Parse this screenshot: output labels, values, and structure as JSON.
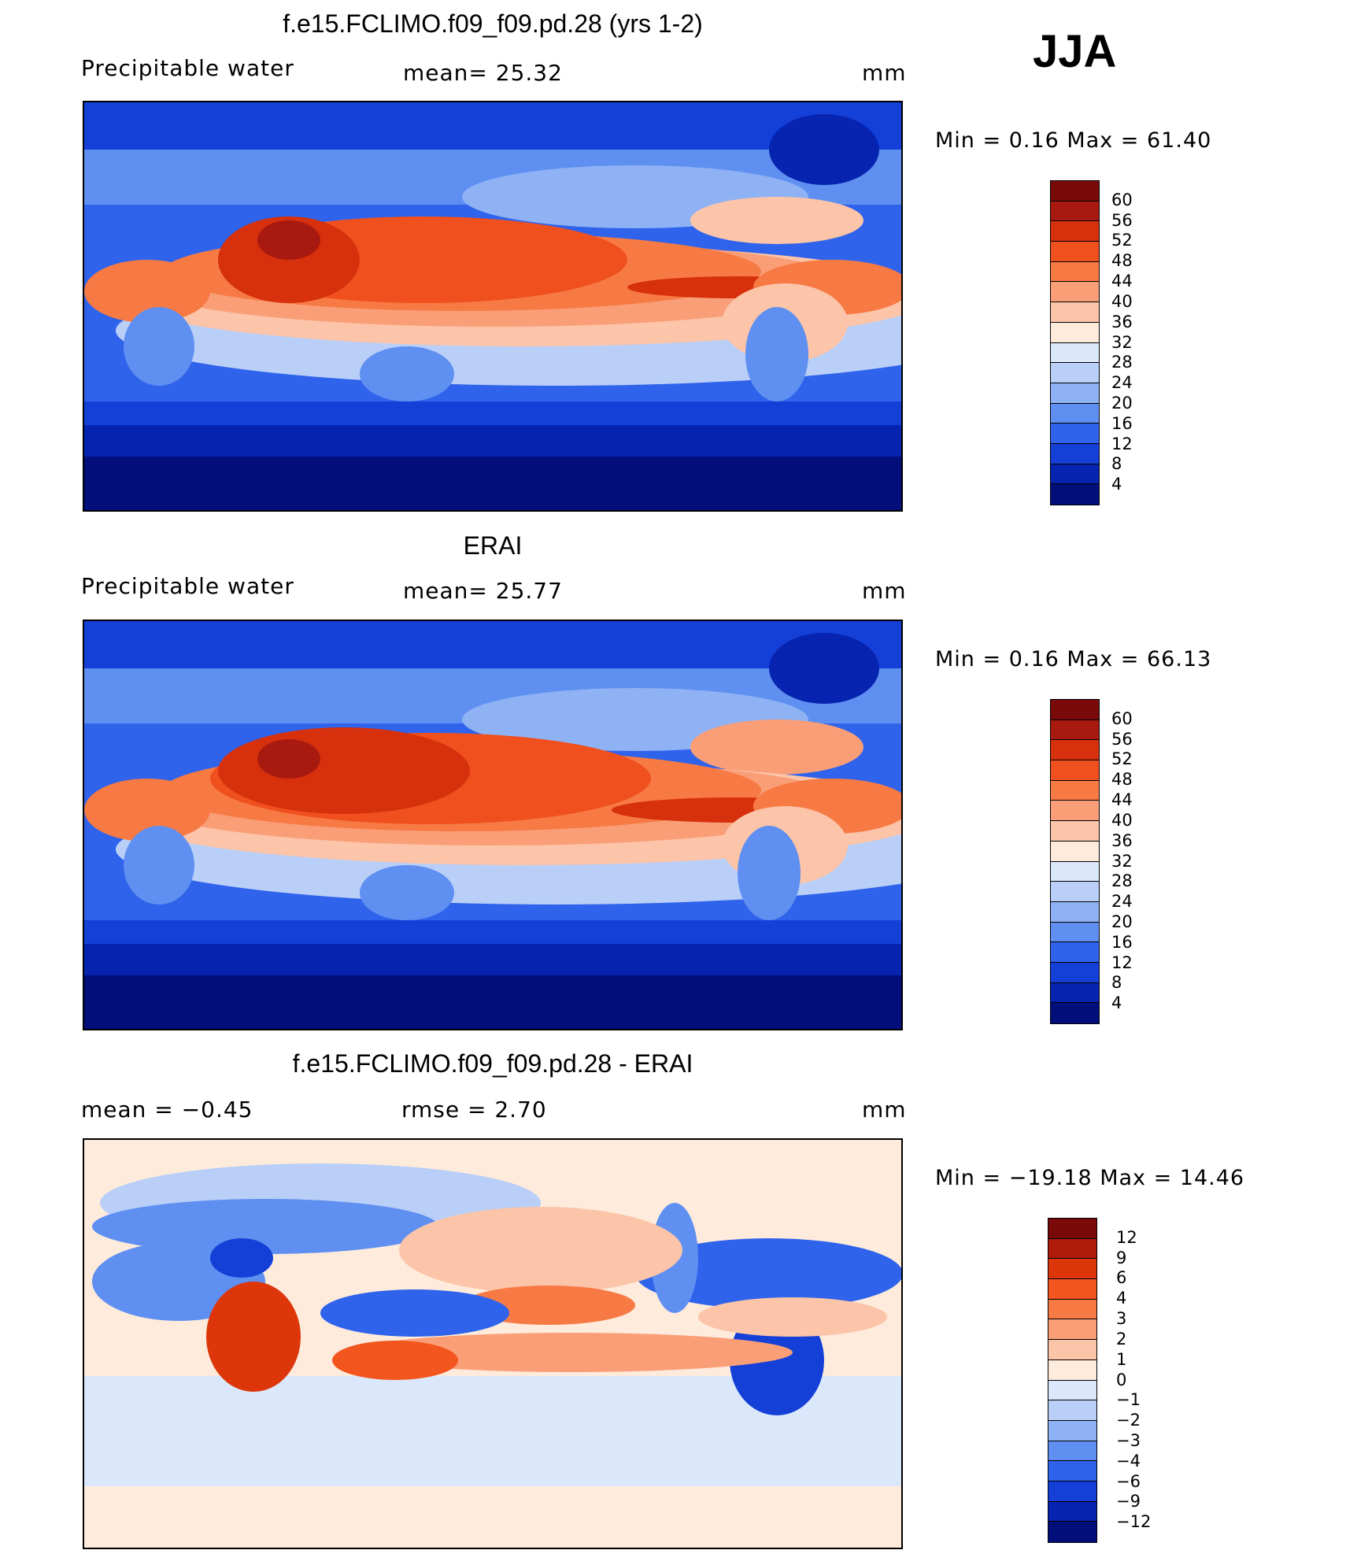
{
  "season": "JJA",
  "panels": [
    {
      "title": "f.e15.FCLIMO.f09_f09.pd.28 (yrs 1-2)",
      "left_label": "Precipitable  water",
      "center_label": "mean=   25.32",
      "units": "mm",
      "minmax": "Min  =     0.16  Max  =    61.40",
      "colorbar_labels": [
        "60",
        "56",
        "52",
        "48",
        "44",
        "40",
        "36",
        "32",
        "28",
        "24",
        "20",
        "16",
        "12",
        "8",
        "4"
      ]
    },
    {
      "title": "ERAI",
      "left_label": "Precipitable  water",
      "center_label": "mean=   25.77",
      "units": "mm",
      "minmax": "Min  =     0.16  Max  =    66.13",
      "colorbar_labels": [
        "60",
        "56",
        "52",
        "48",
        "44",
        "40",
        "36",
        "32",
        "28",
        "24",
        "20",
        "16",
        "12",
        "8",
        "4"
      ]
    },
    {
      "title": "f.e15.FCLIMO.f09_f09.pd.28 - ERAI",
      "left_label": "mean  =    −0.45",
      "center_label": "rmse  =     2.70",
      "units": "mm",
      "minmax": "Min  = −19.18  Max  =    14.46",
      "colorbar_labels": [
        "12",
        "9",
        "6",
        "4",
        "3",
        "2",
        "1",
        "0",
        "−1",
        "−2",
        "−3",
        "−4",
        "−6",
        "−9",
        "−12"
      ]
    }
  ],
  "colors": {
    "field_scale": [
      "#7a0a0a",
      "#a81a10",
      "#d6300c",
      "#f0501e",
      "#f77a44",
      "#fa9e78",
      "#fcc4a8",
      "#feebdc",
      "#dbe8fb",
      "#b9cff8",
      "#8fb2f5",
      "#5f8ff0",
      "#2f63eb",
      "#1440d8",
      "#0624b0",
      "#020e7a"
    ],
    "diff_scale": [
      "#7a0a0a",
      "#b01c0a",
      "#dc360a",
      "#f2561e",
      "#f77a44",
      "#fa9e78",
      "#fcc4a8",
      "#feebdc",
      "#dbe8fb",
      "#b9cff8",
      "#8fb2f5",
      "#5f8ff0",
      "#2f63eb",
      "#1440d8",
      "#0624b0",
      "#020e7a"
    ],
    "coastline": "#000000"
  }
}
